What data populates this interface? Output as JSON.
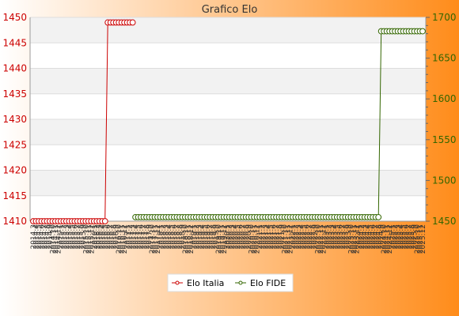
{
  "chart_data": {
    "type": "line",
    "title": "Grafico Elo",
    "colors": {
      "italia": "#cc0000",
      "fide": "#336600",
      "gradient_start": "#ffffff",
      "gradient_end": "#ff8c1a",
      "band": "#f2f2f2"
    },
    "legend_position": "bottom",
    "grid": true,
    "y_left": {
      "ylim": [
        1410,
        1450
      ],
      "ticks": [
        1410,
        1415,
        1420,
        1425,
        1430,
        1435,
        1440,
        1445,
        1450
      ]
    },
    "y_right": {
      "ylim": [
        1450,
        1700
      ],
      "ticks": [
        1450,
        1500,
        1550,
        1600,
        1650,
        1700
      ]
    },
    "x_labels": [
      "2014.3",
      "2014.4",
      "2014.5",
      "2014.6",
      "2014.7",
      "2014.8",
      "2014.9",
      "2014.10",
      "2014.11",
      "2014.12",
      "2015.1",
      "2015.2",
      "2015.3",
      "2015.4",
      "2015.5",
      "2015.6",
      "2015.7",
      "2015.8",
      "2015.9",
      "2015.10",
      "2015.11",
      "2015.12",
      "2016.1",
      "2016.2",
      "2016.3",
      "2016.4",
      "2016.5",
      "2016.6",
      "2016.7",
      "2016.8",
      "2016.9",
      "2016.10",
      "2016.11",
      "2016.12",
      "2017.1",
      "2017.2",
      "2017.3",
      "2017.4",
      "2017.5",
      "2017.6",
      "2017.7",
      "2017.8",
      "2017.9",
      "2017.10",
      "2017.11",
      "2017.12",
      "2018.1",
      "2018.2",
      "2018.3",
      "2018.4",
      "2018.5",
      "2018.6",
      "2018.7",
      "2018.8",
      "2018.9",
      "2018.10",
      "2018.11",
      "2018.12",
      "2019.1",
      "2019.2",
      "2019.3",
      "2019.4",
      "2019.5",
      "2019.6",
      "2019.7",
      "2019.8",
      "2019.9",
      "2019.10",
      "2019.11",
      "2019.12",
      "2020.1",
      "2020.2",
      "2020.3",
      "2020.4",
      "2020.5",
      "2020.6",
      "2020.7",
      "2020.8",
      "2020.9",
      "2020.10",
      "2020.11",
      "2020.12",
      "2021.1",
      "2021.2",
      "2021.3",
      "2021.4",
      "2021.5",
      "2021.6",
      "2021.7",
      "2021.8",
      "2021.9",
      "2021.10",
      "2021.11",
      "2021.12",
      "2022.1",
      "2022.2",
      "2022.3",
      "2022.4",
      "2022.5",
      "2022.6",
      "2022.7",
      "2022.8",
      "2022.9",
      "2022.10",
      "2022.11",
      "2022.12",
      "2023.1",
      "2023.2",
      "2023.3",
      "2023.4",
      "2023.5",
      "2023.6",
      "2023.7",
      "2023.8",
      "2023.9",
      "2023.10",
      "2023.11",
      "2023.12",
      "2024.1",
      "2024.2",
      "2024.3",
      "2024.4",
      "2024.5",
      "2024.6",
      "2024.7",
      "2024.8",
      "2024.9",
      "2024.10",
      "2024.11",
      "2024.12",
      "2025.1",
      "2025.2",
      "2025.3",
      "2025.4",
      "2025.5",
      "2025.6",
      "2025.7",
      "2025.8",
      "2025.9",
      "2025.10",
      "2025.11",
      "2025.12"
    ],
    "series": [
      {
        "name": "Elo Italia",
        "axis": "left",
        "segments": [
          {
            "from": "2014.3",
            "to": "2016.5",
            "value": 1410
          },
          {
            "from": "2016.6",
            "to": "2017.3",
            "value": 1449
          }
        ]
      },
      {
        "name": "Elo FIDE",
        "axis": "right",
        "segments": [
          {
            "from": "2017.4",
            "to": "2024.8",
            "value": 1455
          },
          {
            "from": "2024.9",
            "to": "2025.12",
            "value": 1683
          }
        ]
      }
    ]
  }
}
